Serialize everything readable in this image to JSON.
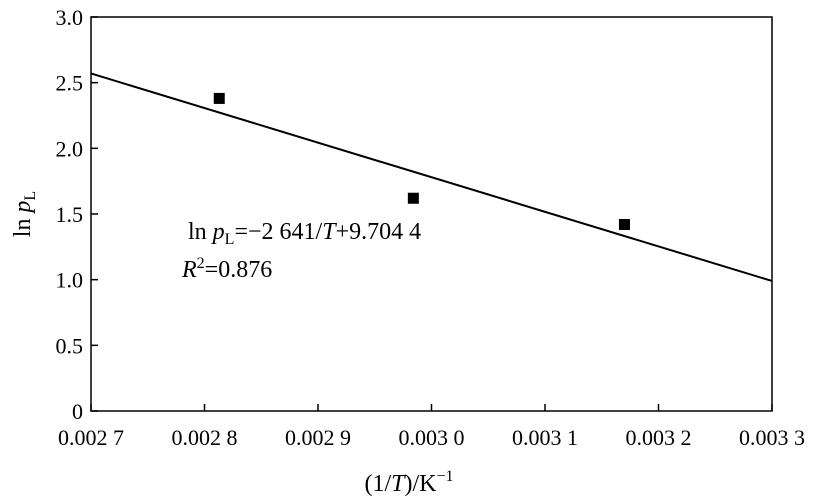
{
  "chart_data": {
    "type": "scatter",
    "x_tick_labels": [
      "0.002 7",
      "0.002 8",
      "0.002 9",
      "0.003 0",
      "0.003 1",
      "0.003 2",
      "0.003 3"
    ],
    "x_ticks": [
      0.0027,
      0.0028,
      0.0029,
      0.003,
      0.0031,
      0.0032,
      0.0033
    ],
    "xlim": [
      0.0027,
      0.0033
    ],
    "y_tick_labels": [
      "0",
      "0.5",
      "1.0",
      "1.5",
      "2.0",
      "2.5",
      "3.0"
    ],
    "y_ticks": [
      0,
      0.5,
      1.0,
      1.5,
      2.0,
      2.5,
      3.0
    ],
    "ylim": [
      0,
      3.0
    ],
    "points": [
      {
        "x": 0.002813,
        "y": 2.38
      },
      {
        "x": 0.002984,
        "y": 1.62
      },
      {
        "x": 0.00317,
        "y": 1.42
      }
    ],
    "fit_line": {
      "x": [
        0.0027,
        0.0033
      ],
      "y": [
        2.57,
        0.99
      ]
    },
    "xlabel": {
      "pre": "(1/",
      "italic": "T",
      "post": ")/K",
      "sup": "−1"
    },
    "ylabel": {
      "pre": "ln ",
      "italic": "p",
      "sub": "L"
    },
    "equation": {
      "pre": "ln ",
      "p": "p",
      "sub": "L",
      "mid": "=−2 641/",
      "t": "T",
      "post": "+9.704 4"
    },
    "r_squared": {
      "r": "R",
      "sup": "2",
      "post": "=0.876"
    },
    "grid": false,
    "colors": {
      "marker": "#000000",
      "line": "#000000",
      "axis": "#000000"
    }
  }
}
